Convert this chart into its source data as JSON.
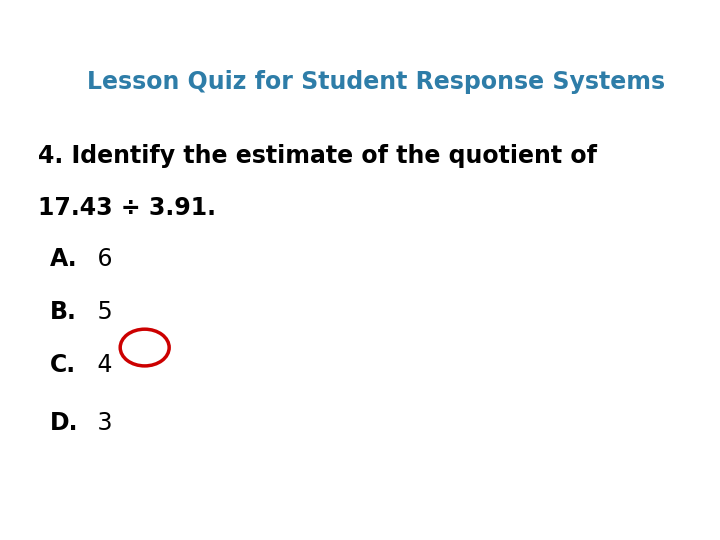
{
  "title": "Lesson Quiz for Student Response Systems",
  "title_color": "#2E7DA8",
  "title_fontsize": 17,
  "question_line1": "4. Identify the estimate of the quotient of",
  "question_line2": "17.43 ÷ 3.91.",
  "question_fontsize": 17,
  "options": [
    {
      "label": "A.",
      "text": " 6",
      "circled": false
    },
    {
      "label": "B.",
      "text": " 5",
      "circled": false
    },
    {
      "label": "C.",
      "text": " 4",
      "circled": true
    },
    {
      "label": "D.",
      "text": " 3",
      "circled": false
    }
  ],
  "option_fontsize": 17,
  "label_color": "#000000",
  "text_color": "#000000",
  "circle_color": "#CC0000",
  "background_color": "#ffffff"
}
